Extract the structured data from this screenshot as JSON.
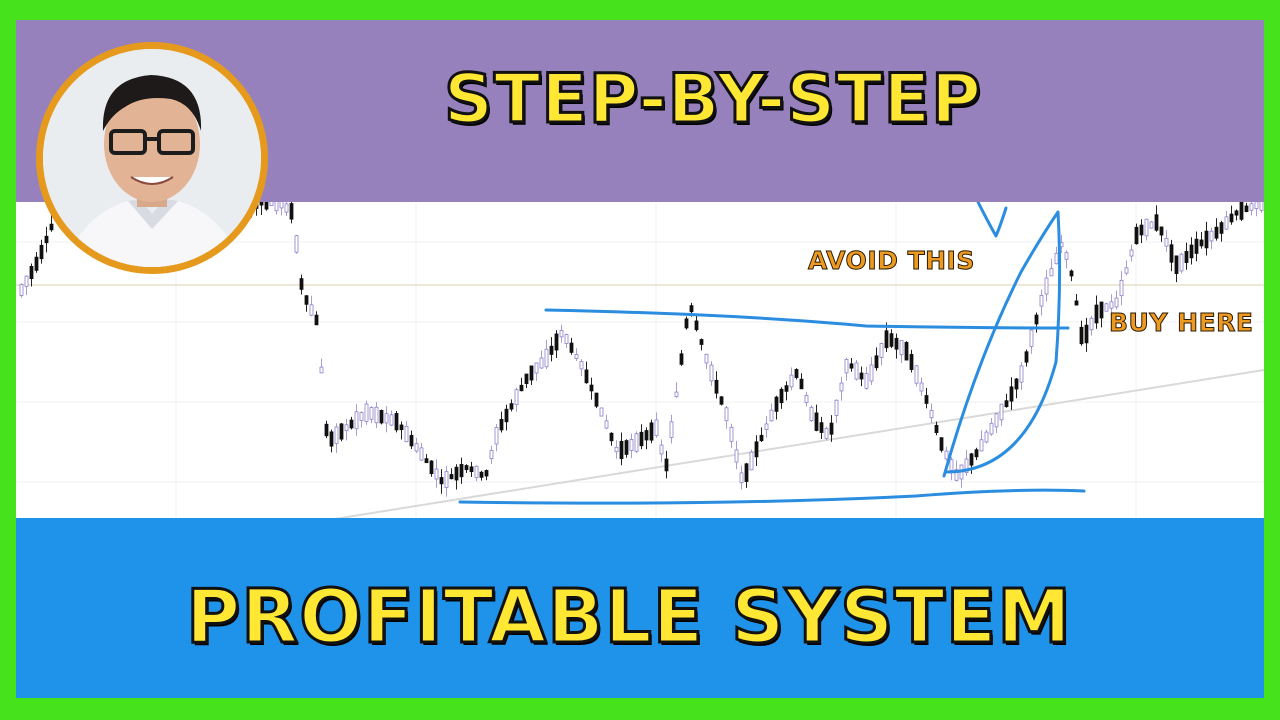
{
  "thumbnail": {
    "top_title": "STEP-BY-STEP",
    "bottom_title": "PROFITABLE SYSTEM",
    "chart_annotations": {
      "avoid": "AVOID THIS",
      "buy": "BUY HERE"
    }
  },
  "colors": {
    "frame": "#46e21c",
    "top_band": "#9681bd",
    "bottom_band": "#1f93ea",
    "title_text": "#ffe733",
    "annotation_text": "#ed9a22",
    "drawing_lines": "#2b8de0",
    "avatar_ring": "#e59a1d"
  },
  "avatar": {
    "icon": "presenter-portrait"
  }
}
